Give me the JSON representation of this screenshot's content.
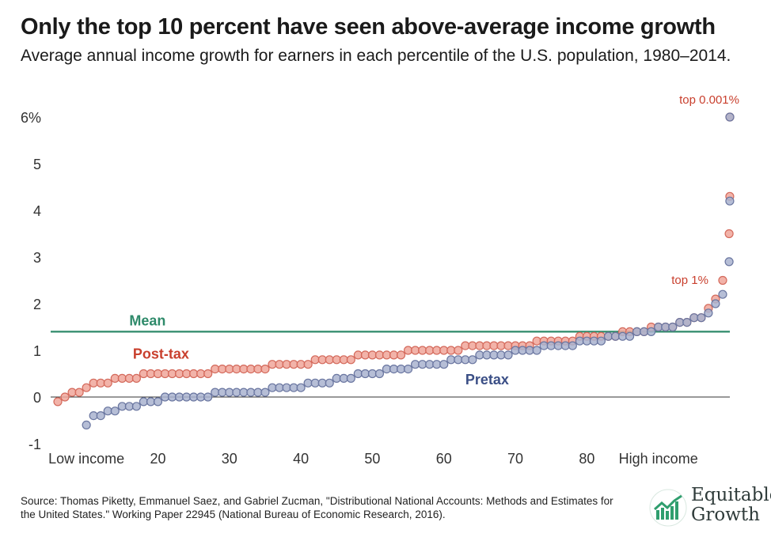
{
  "header": {
    "title": "Only the top 10 percent have seen above-average income growth",
    "subtitle": "Average annual income growth for earners in each percentile of the U.S. population, 1980–2014."
  },
  "footer": {
    "source": "Source: Thomas Piketty, Emmanuel Saez, and Gabriel Zucman, \"Distributional National Accounts: Methods and Estimates for the United States.\" Working Paper 22945 (National Bureau of Economic Research, 2016)."
  },
  "logo": {
    "line1": "Equitable",
    "line2": "Growth"
  },
  "colors": {
    "pretax_fill": "#a9b3cf",
    "pretax_stroke": "#6a76a0",
    "pretax_label": "#3b4f86",
    "posttax_fill": "#f0a69a",
    "posttax_stroke": "#d46a5c",
    "posttax_label": "#c9402e",
    "mean_line": "#2e8a6a",
    "annotation": "#c9402e",
    "axis": "#333333"
  },
  "chart_data": {
    "type": "scatter",
    "title": "Only the top 10 percent have seen above-average income growth",
    "subtitle": "Average annual income growth for earners in each percentile of the U.S. population, 1980–2014.",
    "xlabel": "",
    "ylabel": "",
    "xlim": [
      5,
      100
    ],
    "ylim": [
      -1,
      6
    ],
    "y_ticks": [
      -1,
      0,
      1,
      2,
      3,
      4,
      5,
      6
    ],
    "y_tick_labels": [
      "-1",
      "0",
      "1",
      "2",
      "3",
      "4",
      "5",
      "6%"
    ],
    "x_ticks": [
      10,
      20,
      30,
      40,
      50,
      60,
      70,
      80,
      90
    ],
    "x_tick_labels": [
      "Low income",
      "20",
      "30",
      "40",
      "50",
      "60",
      "70",
      "80",
      "High income"
    ],
    "grid": "y-none",
    "mean": {
      "label": "Mean",
      "value": 1.4
    },
    "series": [
      {
        "name": "Post-tax",
        "x": [
          6,
          7,
          8,
          9,
          10,
          11,
          12,
          13,
          14,
          15,
          16,
          17,
          18,
          19,
          20,
          21,
          22,
          23,
          24,
          25,
          26,
          27,
          28,
          29,
          30,
          31,
          32,
          33,
          34,
          35,
          36,
          37,
          38,
          39,
          40,
          41,
          42,
          43,
          44,
          45,
          46,
          47,
          48,
          49,
          50,
          51,
          52,
          53,
          54,
          55,
          56,
          57,
          58,
          59,
          60,
          61,
          62,
          63,
          64,
          65,
          66,
          67,
          68,
          69,
          70,
          71,
          72,
          73,
          74,
          75,
          76,
          77,
          78,
          79,
          80,
          81,
          82,
          83,
          84,
          85,
          86,
          87,
          88,
          89,
          90,
          91,
          92,
          93,
          94,
          95,
          96,
          97,
          98,
          99,
          99.9,
          99.99,
          99.999
        ],
        "values": [
          -0.1,
          0.0,
          0.1,
          0.1,
          0.2,
          0.3,
          0.3,
          0.3,
          0.4,
          0.4,
          0.4,
          0.4,
          0.5,
          0.5,
          0.5,
          0.5,
          0.5,
          0.5,
          0.5,
          0.5,
          0.5,
          0.5,
          0.6,
          0.6,
          0.6,
          0.6,
          0.6,
          0.6,
          0.6,
          0.6,
          0.7,
          0.7,
          0.7,
          0.7,
          0.7,
          0.7,
          0.8,
          0.8,
          0.8,
          0.8,
          0.8,
          0.8,
          0.9,
          0.9,
          0.9,
          0.9,
          0.9,
          0.9,
          0.9,
          1.0,
          1.0,
          1.0,
          1.0,
          1.0,
          1.0,
          1.0,
          1.0,
          1.1,
          1.1,
          1.1,
          1.1,
          1.1,
          1.1,
          1.1,
          1.1,
          1.1,
          1.1,
          1.2,
          1.2,
          1.2,
          1.2,
          1.2,
          1.2,
          1.3,
          1.3,
          1.3,
          1.3,
          1.3,
          1.3,
          1.4,
          1.4,
          1.4,
          1.4,
          1.5,
          1.5,
          1.5,
          1.5,
          1.6,
          1.6,
          1.7,
          1.7,
          1.9,
          2.1,
          2.5,
          3.5,
          4.3,
          6.0
        ]
      },
      {
        "name": "Pretax",
        "x": [
          10,
          11,
          12,
          13,
          14,
          15,
          16,
          17,
          18,
          19,
          20,
          21,
          22,
          23,
          24,
          25,
          26,
          27,
          28,
          29,
          30,
          31,
          32,
          33,
          34,
          35,
          36,
          37,
          38,
          39,
          40,
          41,
          42,
          43,
          44,
          45,
          46,
          47,
          48,
          49,
          50,
          51,
          52,
          53,
          54,
          55,
          56,
          57,
          58,
          59,
          60,
          61,
          62,
          63,
          64,
          65,
          66,
          67,
          68,
          69,
          70,
          71,
          72,
          73,
          74,
          75,
          76,
          77,
          78,
          79,
          80,
          81,
          82,
          83,
          84,
          85,
          86,
          87,
          88,
          89,
          90,
          91,
          92,
          93,
          94,
          95,
          96,
          97,
          98,
          99,
          99.9,
          99.99,
          99.999
        ],
        "values": [
          -0.6,
          -0.4,
          -0.4,
          -0.3,
          -0.3,
          -0.2,
          -0.2,
          -0.2,
          -0.1,
          -0.1,
          -0.1,
          0.0,
          0.0,
          0.0,
          0.0,
          0.0,
          0.0,
          0.0,
          0.1,
          0.1,
          0.1,
          0.1,
          0.1,
          0.1,
          0.1,
          0.1,
          0.2,
          0.2,
          0.2,
          0.2,
          0.2,
          0.3,
          0.3,
          0.3,
          0.3,
          0.4,
          0.4,
          0.4,
          0.5,
          0.5,
          0.5,
          0.5,
          0.6,
          0.6,
          0.6,
          0.6,
          0.7,
          0.7,
          0.7,
          0.7,
          0.7,
          0.8,
          0.8,
          0.8,
          0.8,
          0.9,
          0.9,
          0.9,
          0.9,
          0.9,
          1.0,
          1.0,
          1.0,
          1.0,
          1.1,
          1.1,
          1.1,
          1.1,
          1.1,
          1.2,
          1.2,
          1.2,
          1.2,
          1.3,
          1.3,
          1.3,
          1.3,
          1.4,
          1.4,
          1.4,
          1.5,
          1.5,
          1.5,
          1.6,
          1.6,
          1.7,
          1.7,
          1.8,
          2.0,
          2.2,
          2.9,
          4.2,
          6.0
        ]
      }
    ],
    "labels": {
      "posttax": "Post-tax",
      "pretax": "Pretax",
      "mean": "Mean",
      "top1": "top 1%",
      "top0001": "top 0.001%"
    }
  }
}
